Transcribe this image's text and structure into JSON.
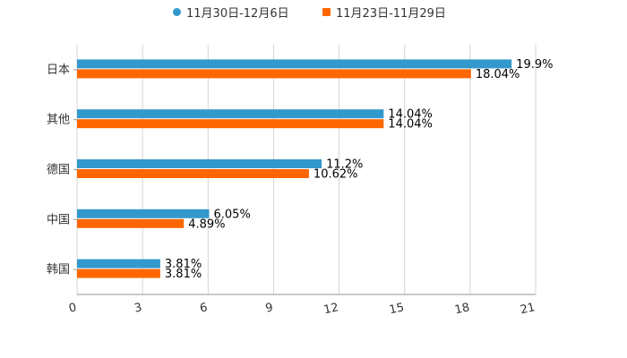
{
  "colors": {
    "series1": "#3399cc",
    "series2": "#ff6600",
    "grid": "#d4d4d4",
    "axis": "#999999",
    "text": "#333333"
  },
  "chart_data": {
    "type": "bar",
    "orientation": "horizontal",
    "categories": [
      "日本",
      "其他",
      "德国",
      "中国",
      "韩国"
    ],
    "series": [
      {
        "name": "11月30日-12月6日",
        "values": [
          19.9,
          14.04,
          11.2,
          6.05,
          3.81
        ],
        "labels": [
          "19.9%",
          "14.04%",
          "11.2%",
          "6.05%",
          "3.81%"
        ]
      },
      {
        "name": "11月23日-11月29日",
        "values": [
          18.04,
          14.04,
          10.62,
          4.89,
          3.81
        ],
        "labels": [
          "18.04%",
          "14.04%",
          "10.62%",
          "4.89%",
          "3.81%"
        ]
      }
    ],
    "xlim": [
      0,
      21
    ],
    "xticks": [
      0,
      3,
      6,
      9,
      12,
      15,
      18,
      21
    ],
    "xtick_labels": [
      "0",
      "3",
      "6",
      "9",
      "12",
      "15",
      "18",
      "21"
    ],
    "grid": true,
    "legend_position": "top-center"
  }
}
